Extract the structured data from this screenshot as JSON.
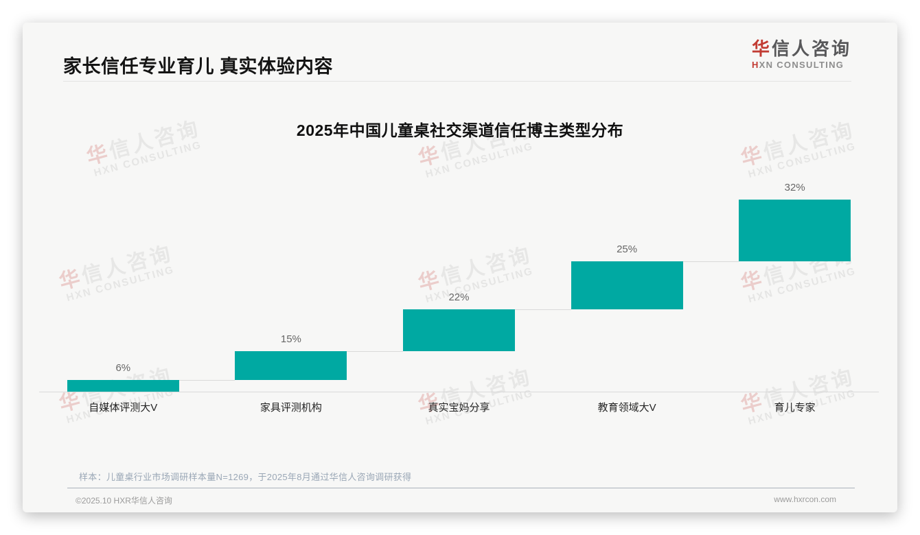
{
  "page": {
    "title": "家长信任专业育儿 真实体验内容",
    "logo": {
      "zh_accent": "华",
      "zh_rest": "信人咨询",
      "en_accent": "H",
      "en_rest": "XN CONSULTING"
    },
    "watermark": {
      "zh_accent": "华",
      "zh_rest": "信人咨询",
      "en": "HXN CONSULTING"
    },
    "footnote": "样本：儿童桌行业市场调研样本量N=1269，于2025年8月通过华信人咨询调研获得",
    "footer_left": "©2025.10 HXR华信人咨询",
    "footer_right": "www.hxrcon.com"
  },
  "colors": {
    "bar_teal": "#00a9a2",
    "accent_red": "#c23b33",
    "connector_gray": "#d9d9d9",
    "card_bg": "#f7f7f6"
  },
  "chart_data": {
    "type": "bar",
    "subtype": "cumulative-step-waterfall",
    "title": "2025年中国儿童桌社交渠道信任博主类型分布",
    "categories": [
      "自媒体评测大V",
      "家具评测机构",
      "真实宝妈分享",
      "教育领域大V",
      "育儿专家"
    ],
    "values": [
      6,
      15,
      22,
      25,
      32
    ],
    "labels": [
      "6%",
      "15%",
      "22%",
      "25%",
      "32%"
    ],
    "unit": "%",
    "total": 100,
    "bar_color": "#00a9a2",
    "xlabel": "",
    "ylabel": "",
    "ylim": [
      0,
      100
    ],
    "grid": false,
    "legend": false,
    "notes": "Each bar starts at the cumulative sum of previous bars; light gray connector lines join each step; baseline axis along the bottom."
  }
}
